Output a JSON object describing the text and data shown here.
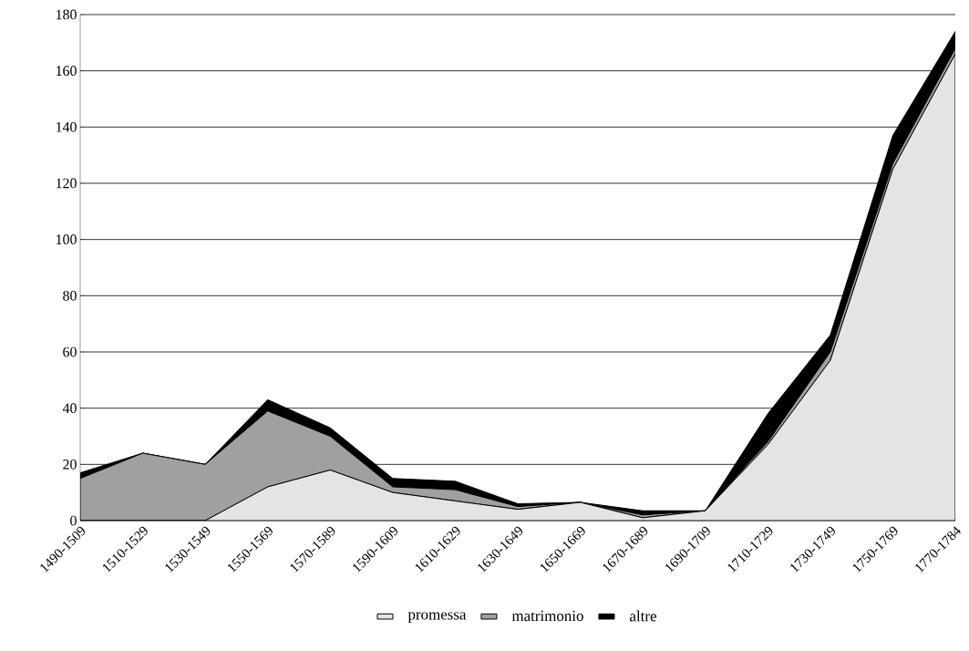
{
  "chart_data": {
    "type": "area",
    "stacked": true,
    "categories": [
      "1490-1509",
      "1510-1529",
      "1530-1549",
      "1550-1569",
      "1570-1589",
      "1590-1609",
      "1610-1629",
      "1630-1649",
      "1650-1669",
      "1670-1689",
      "1690-1709",
      "1710-1729",
      "1730-1749",
      "1750-1769",
      "1770-1784"
    ],
    "series": [
      {
        "name": "promessa",
        "color": "#e4e4e4",
        "values": [
          0,
          0,
          0,
          12,
          18,
          10,
          7,
          4,
          6.5,
          1,
          3.5,
          27,
          57,
          125,
          166
        ]
      },
      {
        "name": "matrimonio",
        "color": "#a0a0a0",
        "values": [
          15,
          24,
          20,
          27,
          12,
          2,
          4,
          1,
          0,
          1,
          0,
          1,
          3,
          2,
          2
        ]
      },
      {
        "name": "altre",
        "color": "#000000",
        "values": [
          2,
          0,
          0,
          4,
          3,
          3,
          3,
          1,
          0,
          1.5,
          0,
          10,
          6,
          10,
          6
        ]
      }
    ],
    "ylim": [
      0,
      180
    ],
    "yticks": [
      0,
      20,
      40,
      60,
      80,
      100,
      120,
      140,
      160,
      180
    ],
    "grid": "y",
    "legend": "bottom"
  }
}
